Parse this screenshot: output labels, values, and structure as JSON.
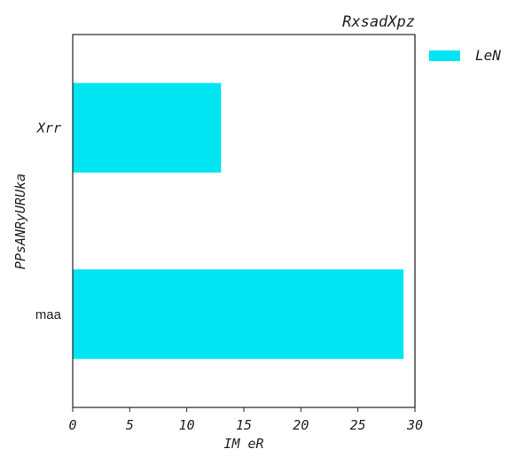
{
  "chart_data": {
    "type": "bar",
    "orientation": "horizontal",
    "title": "RxsadXpz",
    "xlabel": "IM eR",
    "ylabel": "PPsANRyURUka",
    "categories": [
      "Xrr",
      "maa"
    ],
    "series": [
      {
        "name": "LeN",
        "values": [
          13,
          29
        ]
      }
    ],
    "xlim": [
      0,
      30
    ],
    "xticks": [
      0,
      5,
      10,
      15,
      20,
      25,
      30
    ],
    "grid": false,
    "legend_position": "outside-top-right",
    "colors": {
      "bar": "#00e5f2",
      "axis": "#222222",
      "text": "#222222"
    }
  }
}
